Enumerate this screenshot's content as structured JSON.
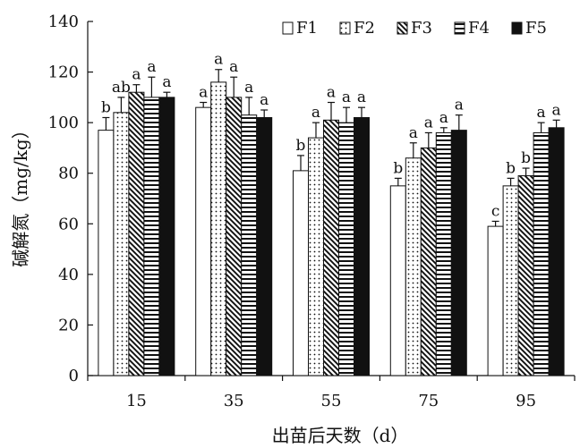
{
  "chart_data": {
    "type": "bar",
    "title": "",
    "xlabel": "出苗后天数（d）",
    "ylabel": "碱解氮（mg/kg）",
    "ylim": [
      0,
      140
    ],
    "yticks": [
      "0",
      "20",
      "40",
      "60",
      "80",
      "100",
      "120",
      "140"
    ],
    "categories": [
      "15",
      "35",
      "55",
      "75",
      "95"
    ],
    "grid": false,
    "legend_position": "top-right",
    "series": [
      {
        "name": "F1",
        "pattern": "open",
        "values": [
          97,
          106,
          81,
          75,
          59
        ],
        "errors": [
          5,
          2,
          6,
          3,
          2
        ],
        "letters": [
          "b",
          "a",
          "b",
          "b",
          "c"
        ]
      },
      {
        "name": "F2",
        "pattern": "dots",
        "values": [
          104,
          116,
          94,
          86,
          75
        ],
        "errors": [
          6,
          5,
          6,
          6,
          3
        ],
        "letters": [
          "ab",
          "a",
          "a",
          "a",
          "b"
        ]
      },
      {
        "name": "F3",
        "pattern": "diagonal",
        "values": [
          112,
          110,
          101,
          90,
          79
        ],
        "errors": [
          3,
          8,
          7,
          6,
          3
        ],
        "letters": [
          "a",
          "a",
          "a",
          "a",
          "b"
        ]
      },
      {
        "name": "F4",
        "pattern": "horizontal",
        "values": [
          110,
          103,
          100,
          96,
          96
        ],
        "errors": [
          8,
          7,
          6,
          2,
          4
        ],
        "letters": [
          "a",
          "a",
          "a",
          "a",
          "a"
        ]
      },
      {
        "name": "F5",
        "pattern": "solid",
        "values": [
          110,
          102,
          102,
          97,
          98
        ],
        "errors": [
          2,
          3,
          4,
          6,
          3
        ],
        "letters": [
          "a",
          "a",
          "a",
          "a",
          "a"
        ]
      }
    ]
  }
}
